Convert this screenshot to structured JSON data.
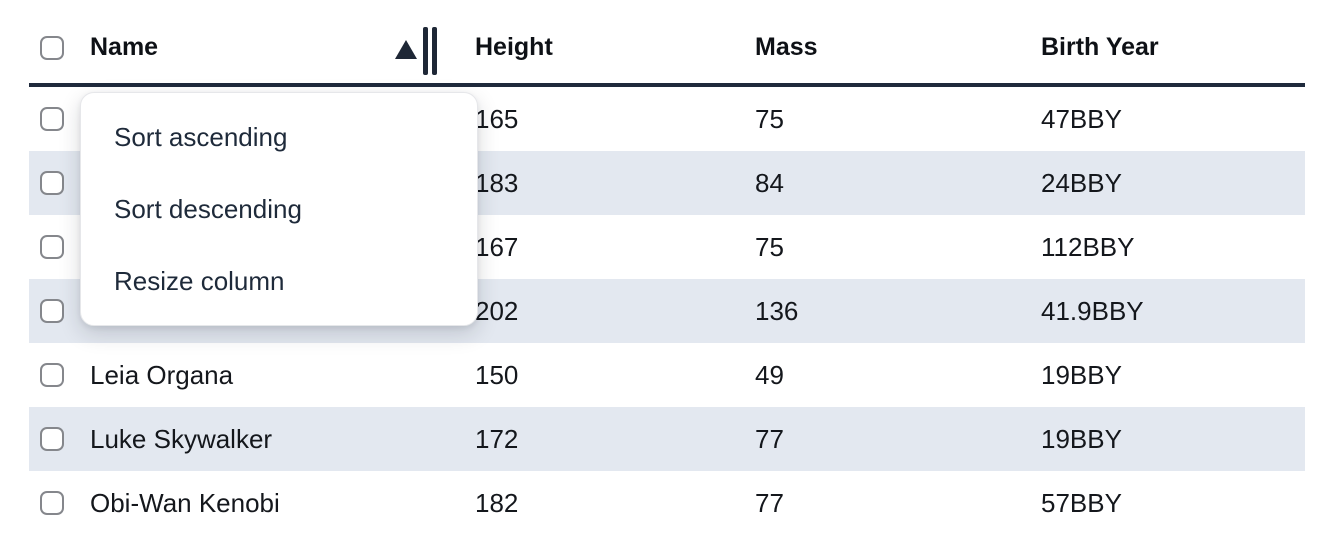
{
  "table": {
    "columns": [
      "Name",
      "Height",
      "Mass",
      "Birth Year"
    ],
    "sort": {
      "column": "Name",
      "direction": "ascending"
    },
    "rows": [
      {
        "name": "",
        "height": "165",
        "mass": "75",
        "birth_year": "47BBY"
      },
      {
        "name": "",
        "height": "183",
        "mass": "84",
        "birth_year": "24BBY"
      },
      {
        "name": "",
        "height": "167",
        "mass": "75",
        "birth_year": "112BBY"
      },
      {
        "name": "",
        "height": "202",
        "mass": "136",
        "birth_year": "41.9BBY"
      },
      {
        "name": "Leia Organa",
        "height": "150",
        "mass": "49",
        "birth_year": "19BBY"
      },
      {
        "name": "Luke Skywalker",
        "height": "172",
        "mass": "77",
        "birth_year": "19BBY"
      },
      {
        "name": "Obi-Wan Kenobi",
        "height": "182",
        "mass": "77",
        "birth_year": "57BBY"
      }
    ]
  },
  "context_menu": {
    "items": [
      "Sort ascending",
      "Sort descending",
      "Resize column"
    ]
  },
  "icons": {
    "sort_indicator": "triangle-up-icon",
    "resize_handle": "double-vertical-bars-icon",
    "row_selector": "checkbox"
  },
  "colors": {
    "row_stripe": "#e3e8f0",
    "header_border": "#1f2a3c",
    "icon": "#1e2736",
    "cell_text": "#14171c",
    "menu_text": "#1e2a3a",
    "checkbox_border": "#85878c"
  }
}
